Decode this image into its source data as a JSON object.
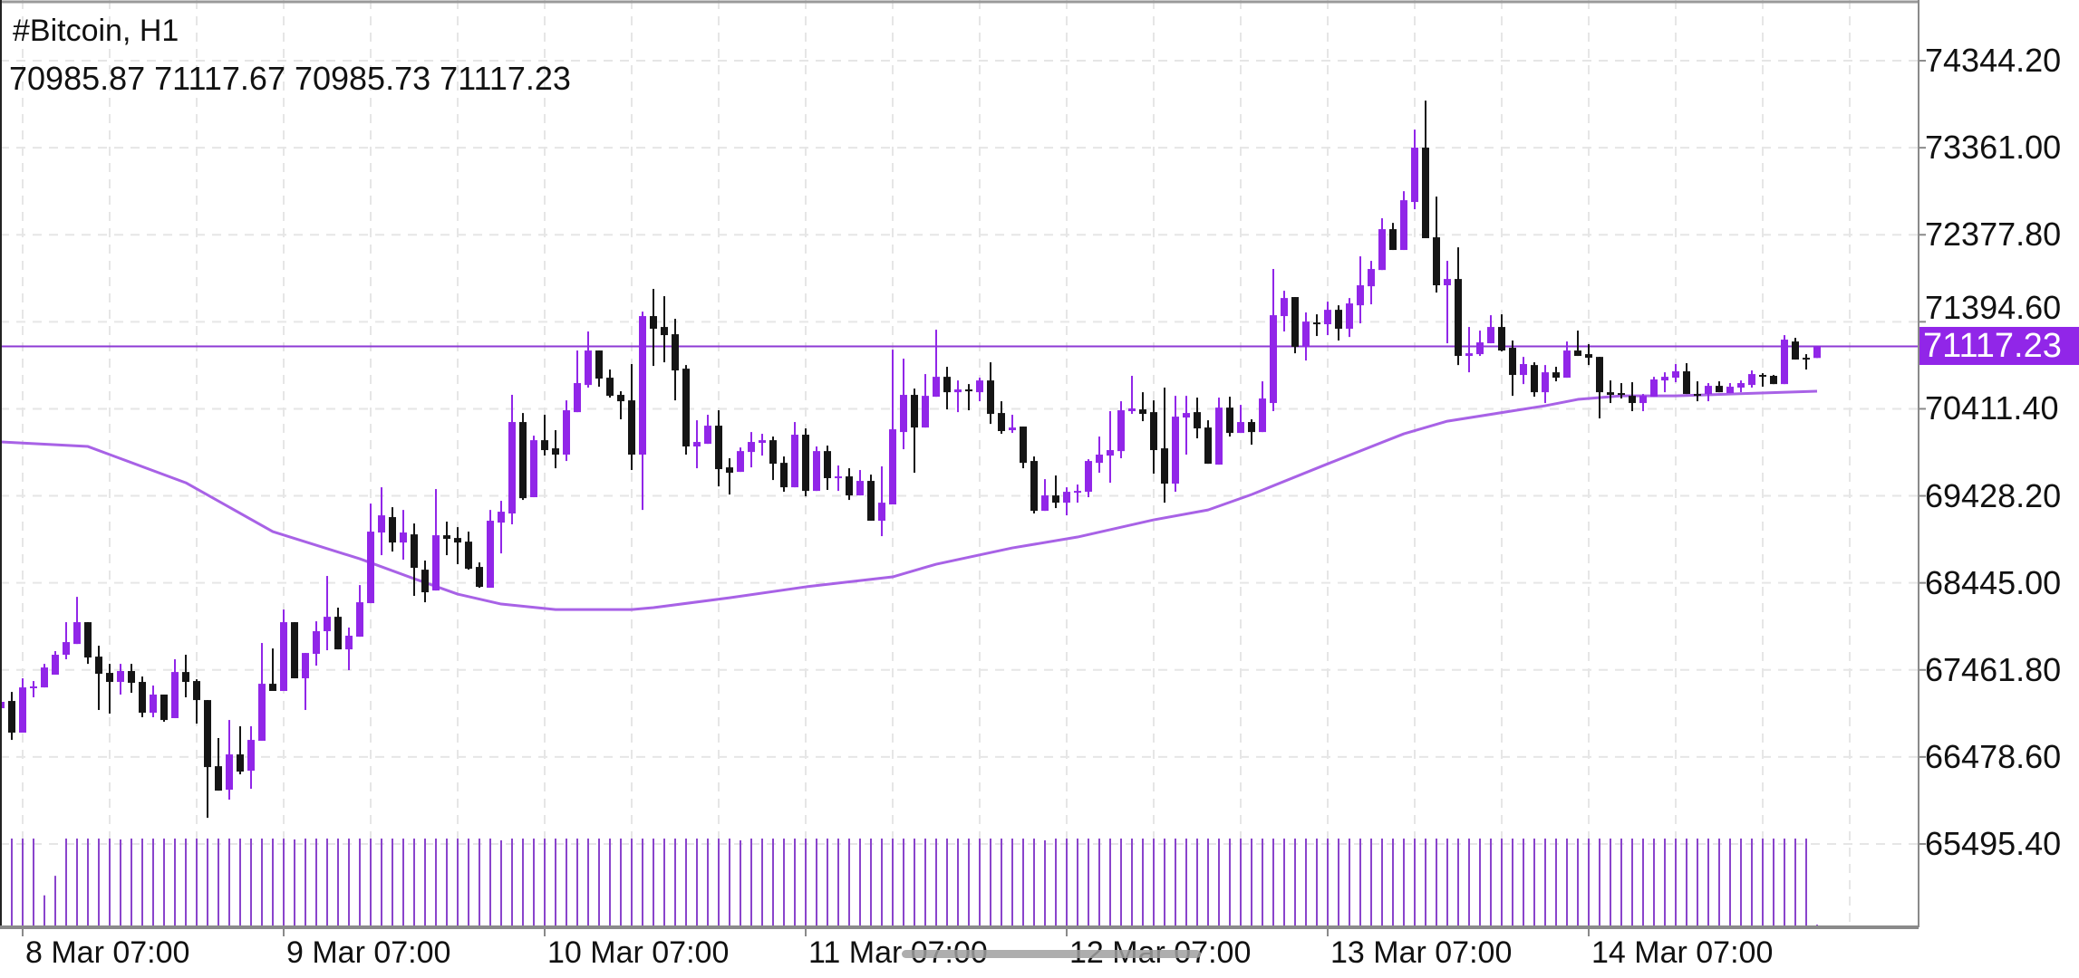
{
  "header": {
    "symbol_title": "#Bitcoin, H1",
    "ohlc_readout": "70985.87 71117.67 70985.73 71117.23"
  },
  "current_price_label": "71117.23",
  "colors": {
    "bull": "#9126e8",
    "bear": "#151515",
    "moving_average": "#a862e6",
    "price_line": "#8c3ad4",
    "price_tag": "#9126e8",
    "volume": "#8a44cc",
    "grid": "#e6e6e6",
    "axis": "#8a8a8a"
  },
  "chart_data": {
    "type": "candlestick",
    "title": "#Bitcoin, H1",
    "grid": true,
    "ylim": [
      64554,
      75030
    ],
    "current_price": 71117.23,
    "y_ticks": [
      "74344.20",
      "73361.00",
      "72377.80",
      "71394.60",
      "70411.40",
      "69428.20",
      "68445.00",
      "67461.80",
      "66478.60",
      "65495.40"
    ],
    "x_ticks": [
      {
        "label": "8 Mar 07:00",
        "index": 2
      },
      {
        "label": "9 Mar 07:00",
        "index": 26
      },
      {
        "label": "10 Mar 07:00",
        "index": 50
      },
      {
        "label": "11 Mar 07:00",
        "index": 74
      },
      {
        "label": "12 Mar 07:00",
        "index": 98
      },
      {
        "label": "13 Mar 07:00",
        "index": 122
      },
      {
        "label": "14 Mar 07:00",
        "index": 146
      }
    ],
    "candles": [
      [
        67029,
        67203,
        66978,
        67101
      ],
      [
        67111,
        67213,
        66671,
        66753
      ],
      [
        66753,
        67367,
        66753,
        67264
      ],
      [
        67264,
        67336,
        67152,
        67275
      ],
      [
        67264,
        67530,
        67264,
        67489
      ],
      [
        67408,
        67674,
        67408,
        67633
      ],
      [
        67633,
        68001,
        67582,
        67776
      ],
      [
        67755,
        68287,
        67755,
        68001
      ],
      [
        68001,
        68001,
        67530,
        67602
      ],
      [
        67612,
        67735,
        67009,
        67418
      ],
      [
        67428,
        67530,
        66968,
        67326
      ],
      [
        67326,
        67530,
        67183,
        67449
      ],
      [
        67449,
        67530,
        67203,
        67316
      ],
      [
        67326,
        67387,
        66927,
        66978
      ],
      [
        66978,
        67285,
        66927,
        67183
      ],
      [
        67183,
        67183,
        66876,
        66896
      ],
      [
        66917,
        67582,
        66917,
        67438
      ],
      [
        67438,
        67633,
        67152,
        67326
      ],
      [
        67336,
        67356,
        66855,
        67121
      ],
      [
        67121,
        67121,
        65791,
        66364
      ],
      [
        66374,
        66692,
        66098,
        66098
      ],
      [
        66108,
        66896,
        65996,
        66507
      ],
      [
        66507,
        66825,
        66282,
        66313
      ],
      [
        66323,
        66825,
        66119,
        66671
      ],
      [
        66661,
        67766,
        66661,
        67305
      ],
      [
        67305,
        67704,
        67224,
        67224
      ],
      [
        67224,
        68144,
        67224,
        68001
      ],
      [
        68001,
        68001,
        67367,
        67367
      ],
      [
        67367,
        67653,
        67009,
        67653
      ],
      [
        67643,
        68011,
        67510,
        67899
      ],
      [
        67899,
        68523,
        67684,
        68062
      ],
      [
        68062,
        68165,
        67694,
        67694
      ],
      [
        67694,
        67940,
        67459,
        67848
      ],
      [
        67837,
        68420,
        67837,
        68226
      ],
      [
        68216,
        69341,
        68216,
        69024
      ],
      [
        69014,
        69525,
        68758,
        69208
      ],
      [
        69188,
        69300,
        68799,
        68901
      ],
      [
        68901,
        69269,
        68707,
        69014
      ],
      [
        68993,
        69116,
        68298,
        68615
      ],
      [
        68594,
        68697,
        68226,
        68339
      ],
      [
        68359,
        69505,
        68359,
        68983
      ],
      [
        68983,
        69137,
        68758,
        68942
      ],
      [
        68952,
        69075,
        68656,
        68901
      ],
      [
        68911,
        69024,
        68594,
        68605
      ],
      [
        68625,
        68676,
        68390,
        68400
      ],
      [
        68390,
        69269,
        68390,
        69147
      ],
      [
        69126,
        69372,
        68778,
        69249
      ],
      [
        69229,
        70569,
        69106,
        70262
      ],
      [
        70262,
        70364,
        69382,
        69402
      ],
      [
        69413,
        70108,
        69413,
        70057
      ],
      [
        70057,
        70344,
        69883,
        69945
      ],
      [
        69965,
        70170,
        69740,
        69894
      ],
      [
        69894,
        70507,
        69822,
        70395
      ],
      [
        70374,
        71070,
        70374,
        70702
      ],
      [
        70681,
        71285,
        70651,
        71070
      ],
      [
        71070,
        71070,
        70661,
        70753
      ],
      [
        70763,
        70855,
        70538,
        70558
      ],
      [
        70569,
        70610,
        70293,
        70497
      ],
      [
        70507,
        70917,
        69720,
        69894
      ],
      [
        69894,
        71510,
        69269,
        71459
      ],
      [
        71459,
        71766,
        70896,
        71316
      ],
      [
        71336,
        71684,
        70937,
        71244
      ],
      [
        71254,
        71428,
        70507,
        70845
      ],
      [
        70865,
        70906,
        69894,
        69986
      ],
      [
        69986,
        70282,
        69740,
        70037
      ],
      [
        70016,
        70344,
        70016,
        70221
      ],
      [
        70221,
        70395,
        69535,
        69730
      ],
      [
        69750,
        69853,
        69443,
        69689
      ],
      [
        69699,
        69975,
        69699,
        69934
      ],
      [
        69924,
        70149,
        69750,
        70037
      ],
      [
        70027,
        70129,
        69883,
        70057
      ],
      [
        70057,
        70098,
        69607,
        69791
      ],
      [
        69801,
        69873,
        69474,
        69525
      ],
      [
        69525,
        70262,
        69525,
        70119
      ],
      [
        70119,
        70190,
        69423,
        69484
      ],
      [
        69484,
        69986,
        69484,
        69934
      ],
      [
        69934,
        69996,
        69495,
        69628
      ],
      [
        69628,
        69771,
        69484,
        69648
      ],
      [
        69648,
        69740,
        69382,
        69433
      ],
      [
        69433,
        69720,
        69433,
        69597
      ],
      [
        69597,
        69668,
        69147,
        69147
      ],
      [
        69147,
        69761,
        68973,
        69351
      ],
      [
        69331,
        71080,
        69331,
        70180
      ],
      [
        70149,
        70978,
        69955,
        70569
      ],
      [
        70569,
        70640,
        69689,
        70200
      ],
      [
        70200,
        70804,
        70200,
        70558
      ],
      [
        70548,
        71305,
        70548,
        70773
      ],
      [
        70773,
        70886,
        70405,
        70599
      ],
      [
        70599,
        70732,
        70374,
        70630
      ],
      [
        70630,
        70691,
        70395,
        70610
      ],
      [
        70599,
        70763,
        70497,
        70732
      ],
      [
        70732,
        70937,
        70241,
        70354
      ],
      [
        70364,
        70497,
        70129,
        70160
      ],
      [
        70170,
        70344,
        70139,
        70200
      ],
      [
        70211,
        70211,
        69740,
        69801
      ],
      [
        69822,
        69873,
        69229,
        69259
      ],
      [
        69259,
        69617,
        69259,
        69433
      ],
      [
        69433,
        69658,
        69290,
        69351
      ],
      [
        69351,
        69525,
        69208,
        69474
      ],
      [
        69464,
        69556,
        69351,
        69484
      ],
      [
        69474,
        69842,
        69413,
        69822
      ],
      [
        69801,
        70098,
        69689,
        69894
      ],
      [
        69883,
        70385,
        69576,
        69945
      ],
      [
        69934,
        70497,
        69853,
        70395
      ],
      [
        70385,
        70784,
        70354,
        70415
      ],
      [
        70405,
        70599,
        70272,
        70354
      ],
      [
        70374,
        70507,
        69679,
        69945
      ],
      [
        69965,
        70651,
        69351,
        69566
      ],
      [
        69566,
        70558,
        69474,
        70323
      ],
      [
        70313,
        70558,
        69894,
        70364
      ],
      [
        70374,
        70538,
        70078,
        70190
      ],
      [
        70200,
        70282,
        69791,
        69791
      ],
      [
        69781,
        70538,
        69781,
        70425
      ],
      [
        70425,
        70548,
        70098,
        70139
      ],
      [
        70139,
        70456,
        70139,
        70262
      ],
      [
        70262,
        70293,
        70006,
        70149
      ],
      [
        70149,
        70722,
        70149,
        70528
      ],
      [
        70477,
        71991,
        70385,
        71469
      ],
      [
        71459,
        71745,
        71285,
        71663
      ],
      [
        71674,
        71674,
        71039,
        71111
      ],
      [
        71111,
        71500,
        70957,
        71397
      ],
      [
        71387,
        71479,
        71234,
        71387
      ],
      [
        71367,
        71622,
        71244,
        71530
      ],
      [
        71530,
        71581,
        71183,
        71316
      ],
      [
        71316,
        71663,
        71223,
        71602
      ],
      [
        71581,
        72134,
        71377,
        71807
      ],
      [
        71796,
        72083,
        71592,
        71991
      ],
      [
        71980,
        72564,
        71980,
        72441
      ],
      [
        72441,
        72512,
        72206,
        72206
      ],
      [
        72206,
        72870,
        72206,
        72768
      ],
      [
        72748,
        73566,
        72666,
        73362
      ],
      [
        73362,
        73893,
        72339,
        72339
      ],
      [
        72349,
        72809,
        71725,
        71807
      ],
      [
        71807,
        72083,
        71152,
        71878
      ],
      [
        71878,
        72236,
        70906,
        71009
      ],
      [
        71009,
        71336,
        70824,
        71039
      ],
      [
        71029,
        71295,
        71009,
        71162
      ],
      [
        71152,
        71469,
        71152,
        71336
      ],
      [
        71336,
        71479,
        71060,
        71070
      ],
      [
        71101,
        71183,
        70558,
        70794
      ],
      [
        70794,
        70998,
        70691,
        70917
      ],
      [
        70906,
        70937,
        70548,
        70599
      ],
      [
        70599,
        70906,
        70477,
        70824
      ],
      [
        70824,
        70886,
        70722,
        70763
      ],
      [
        70763,
        71172,
        70763,
        71070
      ],
      [
        71070,
        71295,
        71009,
        71009
      ],
      [
        71029,
        71142,
        70906,
        70988
      ],
      [
        70998,
        70998,
        70303,
        70599
      ],
      [
        70599,
        70732,
        70477,
        70569
      ],
      [
        70589,
        70702,
        70528,
        70569
      ],
      [
        70558,
        70712,
        70385,
        70477
      ],
      [
        70477,
        70579,
        70385,
        70558
      ],
      [
        70548,
        70773,
        70548,
        70743
      ],
      [
        70732,
        70824,
        70599,
        70773
      ],
      [
        70763,
        70917,
        70712,
        70835
      ],
      [
        70835,
        70927,
        70579,
        70579
      ],
      [
        70579,
        70722,
        70497,
        70569
      ],
      [
        70579,
        70702,
        70497,
        70671
      ],
      [
        70671,
        70722,
        70599,
        70599
      ],
      [
        70589,
        70702,
        70589,
        70661
      ],
      [
        70651,
        70732,
        70599,
        70702
      ],
      [
        70681,
        70845,
        70651,
        70804
      ],
      [
        70794,
        70814,
        70661,
        70784
      ],
      [
        70784,
        70794,
        70691,
        70691
      ],
      [
        70691,
        71244,
        70691,
        71193
      ],
      [
        71172,
        71213,
        70968,
        70968
      ],
      [
        70988,
        71029,
        70855,
        70978
      ],
      [
        70985.87,
        71117.67,
        70985.73,
        71117.23
      ]
    ],
    "volume": [
      100,
      100,
      100,
      100,
      36,
      58,
      100,
      100,
      100,
      100,
      100,
      99,
      100,
      100,
      100,
      100,
      100,
      100,
      100,
      100,
      100,
      100,
      100,
      100,
      100,
      100,
      100,
      99,
      100,
      100,
      100,
      100,
      100,
      100,
      100,
      100,
      100,
      100,
      100,
      100,
      100,
      100,
      100,
      100,
      100,
      100,
      98,
      100,
      100,
      100,
      100,
      100,
      100,
      100,
      100,
      100,
      100,
      100,
      100,
      100,
      100,
      100,
      100,
      100,
      100,
      100,
      100,
      100,
      98,
      100,
      100,
      100,
      100,
      100,
      100,
      100,
      100,
      100,
      100,
      100,
      100,
      100,
      100,
      100,
      100,
      100,
      100,
      100,
      100,
      100,
      100,
      100,
      100,
      100,
      100,
      100,
      98,
      100,
      100,
      100,
      100,
      100,
      100,
      100,
      100,
      100,
      100,
      100,
      100,
      100,
      100,
      100,
      100,
      100,
      100,
      100,
      100,
      100,
      100,
      100,
      100,
      100,
      100,
      100,
      100,
      100,
      100,
      100,
      100,
      100,
      100,
      100,
      100,
      100,
      100,
      100,
      100,
      100,
      100,
      100,
      100,
      100,
      100,
      100,
      100,
      100,
      100,
      100,
      100,
      100,
      100,
      100,
      100,
      100,
      100,
      100,
      100,
      100,
      100,
      100,
      100,
      100,
      100,
      100,
      100,
      100,
      100,
      3
    ],
    "moving_average": [
      [
        0,
        70037
      ],
      [
        8,
        69986
      ],
      [
        17,
        69576
      ],
      [
        25,
        69024
      ],
      [
        33,
        68717
      ],
      [
        38,
        68492
      ],
      [
        42,
        68318
      ],
      [
        46,
        68206
      ],
      [
        51,
        68144
      ],
      [
        58,
        68144
      ],
      [
        60,
        68165
      ],
      [
        67,
        68277
      ],
      [
        74,
        68400
      ],
      [
        82,
        68513
      ],
      [
        86,
        68656
      ],
      [
        93,
        68840
      ],
      [
        99,
        68963
      ],
      [
        106,
        69157
      ],
      [
        111,
        69269
      ],
      [
        115,
        69443
      ],
      [
        122,
        69790
      ],
      [
        129,
        70129
      ],
      [
        133,
        70272
      ],
      [
        142,
        70446
      ],
      [
        145,
        70518
      ],
      [
        149,
        70558
      ],
      [
        154,
        70558
      ],
      [
        167,
        70610
      ]
    ]
  }
}
